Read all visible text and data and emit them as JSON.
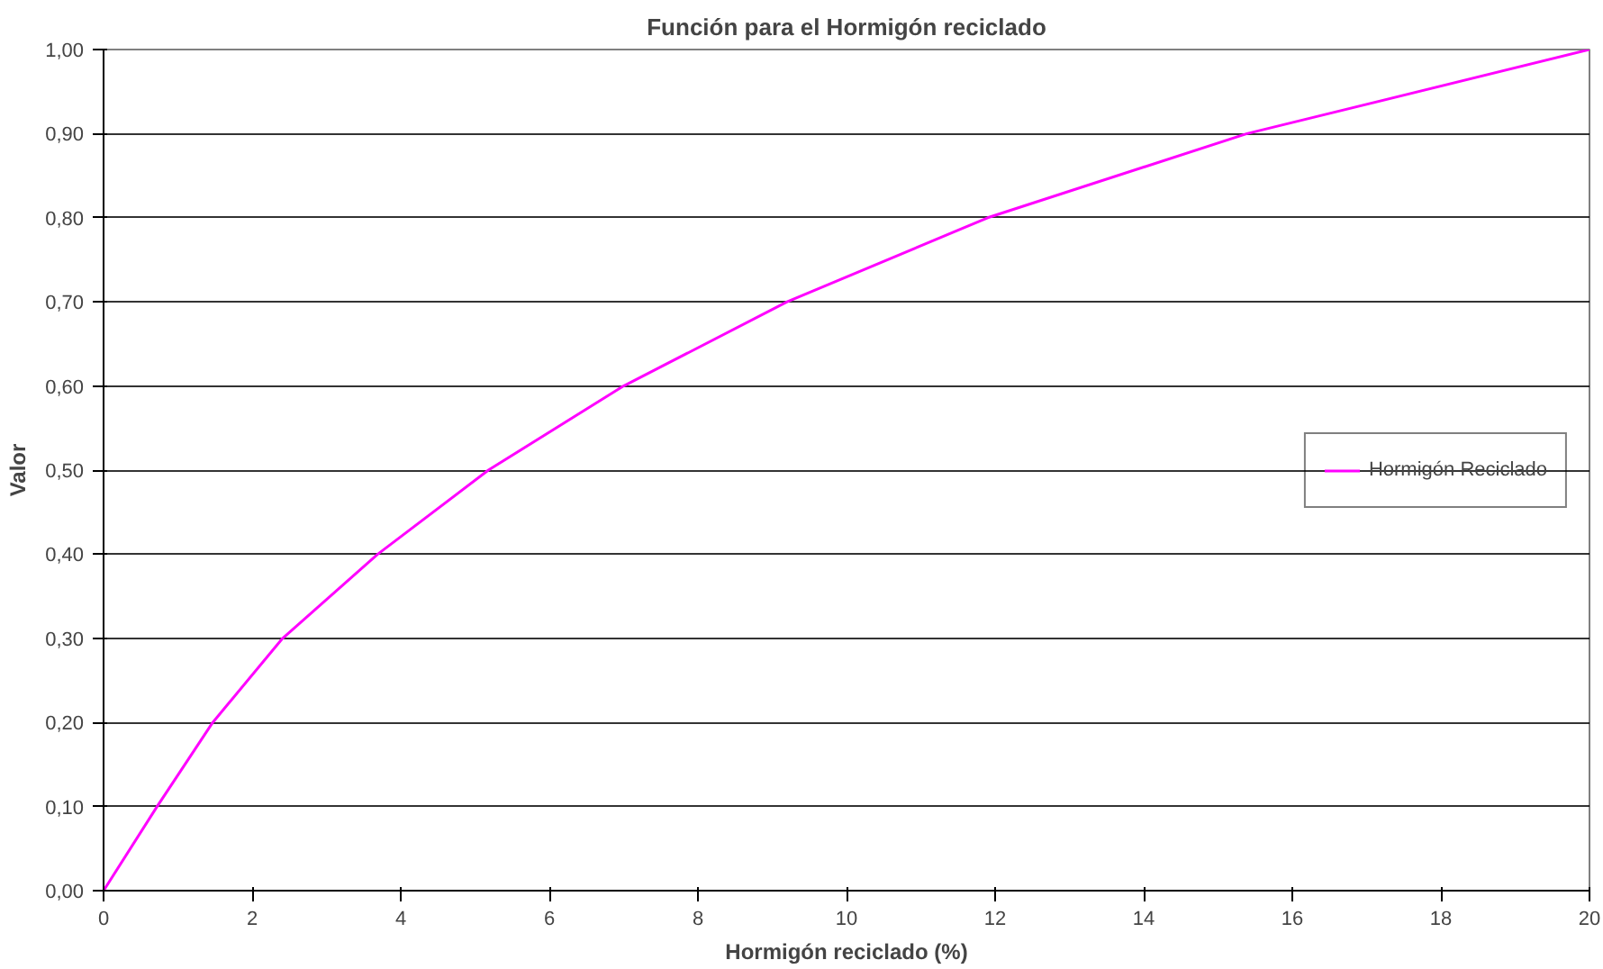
{
  "chart_data": {
    "type": "line",
    "title": "Función para el Hormigón reciclado",
    "xlabel": "Hormigón reciclado (%)",
    "ylabel": "Valor",
    "x": [
      0,
      0.72,
      1.47,
      2.41,
      3.69,
      5.18,
      7.0,
      9.2,
      11.9,
      15.39,
      20
    ],
    "series": [
      {
        "name": "Hormigón Reciclado",
        "color": "#ff00ff",
        "values": [
          0,
          0.1,
          0.2,
          0.3,
          0.4,
          0.5,
          0.6,
          0.7,
          0.8,
          0.9,
          1.0
        ]
      }
    ],
    "xlim": [
      0,
      20
    ],
    "xticks": [
      0,
      2,
      4,
      6,
      8,
      10,
      12,
      14,
      16,
      18,
      20
    ],
    "ylim": [
      0,
      1
    ],
    "yticks": [
      {
        "value": 0,
        "label": "0,00"
      },
      {
        "value": 0.1,
        "label": "0,10"
      },
      {
        "value": 0.2,
        "label": "0,20"
      },
      {
        "value": 0.3,
        "label": "0,30"
      },
      {
        "value": 0.4,
        "label": "0,40"
      },
      {
        "value": 0.5,
        "label": "0,50"
      },
      {
        "value": 0.6,
        "label": "0,60"
      },
      {
        "value": 0.7,
        "label": "0,70"
      },
      {
        "value": 0.8,
        "label": "0,80"
      },
      {
        "value": 0.9,
        "label": "0,90"
      },
      {
        "value": 1.0,
        "label": "1,00"
      }
    ],
    "grid": "y",
    "legend": "right",
    "marker": "none",
    "line_style": "solid"
  }
}
